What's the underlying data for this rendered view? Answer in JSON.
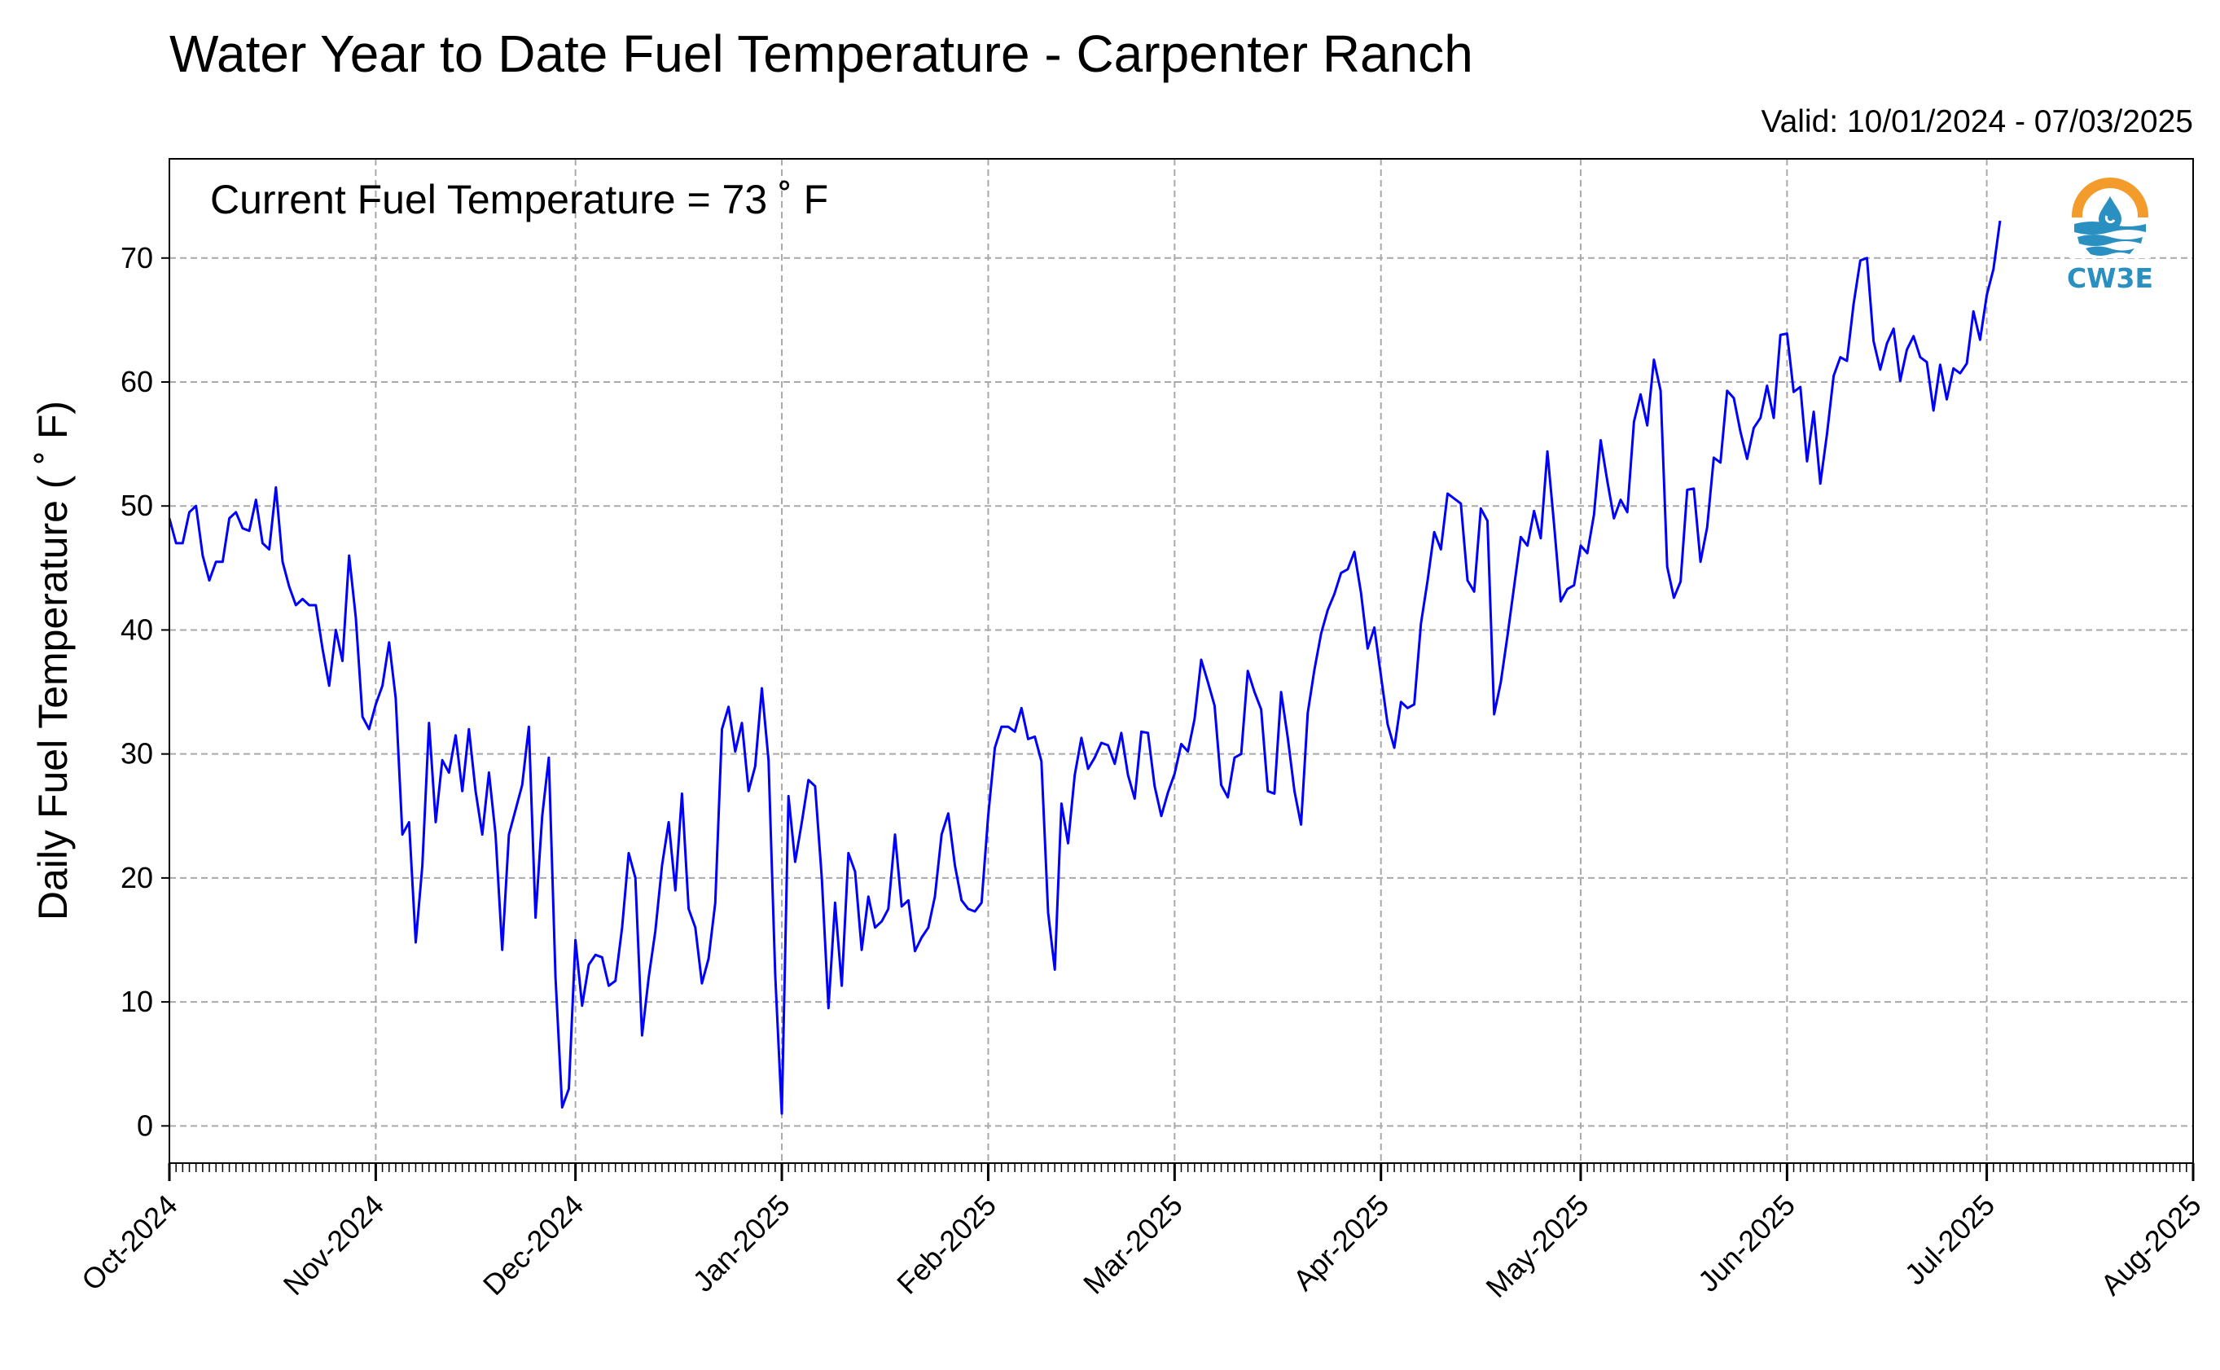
{
  "chart_data": {
    "type": "line",
    "title": "Water Year to Date Fuel Temperature - Carpenter Ranch",
    "subtitle": "Valid: 10/01/2024 - 07/03/2025",
    "xlabel": "",
    "ylabel": "Daily Fuel Temperature ( $^\\circ$F)",
    "ylabel_display": "Daily Fuel Temperature ( ˚ F)",
    "annotation": "Current Fuel Temperature = 73 ˚ F",
    "xlim": [
      "2024-10-01",
      "2025-08-01"
    ],
    "ylim": [
      -3,
      78
    ],
    "x_tick_labels": [
      "Oct-2024",
      "Nov-2024",
      "Dec-2024",
      "Jan-2025",
      "Feb-2025",
      "Mar-2025",
      "Apr-2025",
      "May-2025",
      "Jun-2025",
      "Jul-2025",
      "Aug-2025"
    ],
    "x_tick_dates": [
      "2024-10-01",
      "2024-11-01",
      "2024-12-01",
      "2025-01-01",
      "2025-02-01",
      "2025-03-01",
      "2025-04-01",
      "2025-05-01",
      "2025-06-01",
      "2025-07-01",
      "2025-08-01"
    ],
    "y_ticks": [
      0,
      10,
      20,
      30,
      40,
      50,
      60,
      70
    ],
    "grid": true,
    "line_color": "#0000ff",
    "series": [
      {
        "start_date": "2024-10-01",
        "values": [
          49,
          47,
          47,
          49.5,
          50,
          46,
          44,
          45.5,
          45.5,
          49,
          49.5,
          48.2,
          48,
          50.5,
          47,
          46.5,
          51.5,
          45.5,
          43.5,
          42,
          42.5,
          42,
          42,
          38.5,
          35.5,
          40,
          37.5,
          46,
          41,
          33,
          32,
          34,
          35.5,
          39,
          34.5,
          23.5,
          24.5,
          14.8,
          21,
          32.5,
          24.5,
          29.5,
          28.5,
          31.5,
          27,
          32,
          27,
          23.5,
          28.5,
          23.5,
          14.2,
          23.5,
          25.5,
          27.5,
          32.2,
          16.8,
          25,
          29.7,
          12,
          1.5,
          3,
          15,
          9.7,
          13,
          13.8,
          13.6,
          11.3,
          11.7,
          16,
          22,
          20,
          7.3,
          12,
          15.7,
          21,
          24.5,
          19,
          26.8,
          17.5,
          16,
          11.5,
          13.5,
          18,
          32,
          33.8,
          30.2,
          32.5,
          27,
          29,
          35.3,
          29.5,
          12.2,
          1,
          26.6,
          21.3,
          24.5,
          27.9,
          27.4,
          20,
          9.5,
          18,
          11.3,
          22,
          20.5,
          14.2,
          18.5,
          16,
          16.5,
          17.5,
          23.5,
          17.7,
          18.2,
          14.1,
          15.2,
          16,
          18.5,
          23.5,
          25.2,
          21,
          18.2,
          17.5,
          17.3,
          18,
          25,
          30.5,
          32.2,
          32.2,
          31.8,
          33.7,
          31.2,
          31.4,
          29.4,
          17.2,
          12.6,
          26,
          22.8,
          28.3,
          31.3,
          28.8,
          29.7,
          30.9,
          30.7,
          29.2,
          31.7,
          28.3,
          26.4,
          31.8,
          31.7,
          27.4,
          25,
          26.9,
          28.4,
          30.8,
          30.2,
          32.8,
          37.6,
          35.8,
          33.9,
          27.5,
          26.5,
          29.7,
          30,
          36.7,
          35,
          33.6,
          27,
          26.8,
          35,
          31.3,
          27,
          24.3,
          33.3,
          36.8,
          39.7,
          41.6,
          42.9,
          44.6,
          44.9,
          46.3,
          43,
          38.5,
          40.2,
          36.3,
          32.4,
          30.5,
          34.2,
          33.7,
          34,
          40.5,
          44,
          47.9,
          46.5,
          51,
          50.6,
          50.2,
          44,
          43.1,
          49.8,
          48.8,
          33.2,
          35.8,
          39.5,
          43.5,
          47.5,
          46.8,
          49.6,
          47.4,
          54.4,
          48.5,
          42.3,
          43.3,
          43.6,
          46.8,
          46.2,
          49.3,
          55.3,
          52,
          49,
          50.5,
          49.5,
          56.8,
          59,
          56.5,
          61.8,
          59.3,
          45.1,
          42.6,
          43.9,
          51.3,
          51.4,
          45.5,
          48.3,
          53.9,
          53.5,
          59.3,
          58.7,
          56,
          53.8,
          56.3,
          57.1,
          59.7,
          57.1,
          63.8,
          63.9,
          59.2,
          59.6,
          53.6,
          57.6,
          51.8,
          55.8,
          60.5,
          62,
          61.7,
          66.3,
          69.8,
          70,
          63.3,
          61,
          63.1,
          64.3,
          60.1,
          62.6,
          63.7,
          62,
          61.6,
          57.7,
          61.4,
          58.6,
          61.1,
          60.7,
          61.5,
          65.7,
          63.4,
          67,
          69.1,
          73
        ]
      }
    ]
  },
  "logo": {
    "text": "CW3E",
    "icon": "water-drop-sun-icon",
    "colors": {
      "ring": "#f39c2b",
      "waves": "#2a8fc1"
    }
  }
}
